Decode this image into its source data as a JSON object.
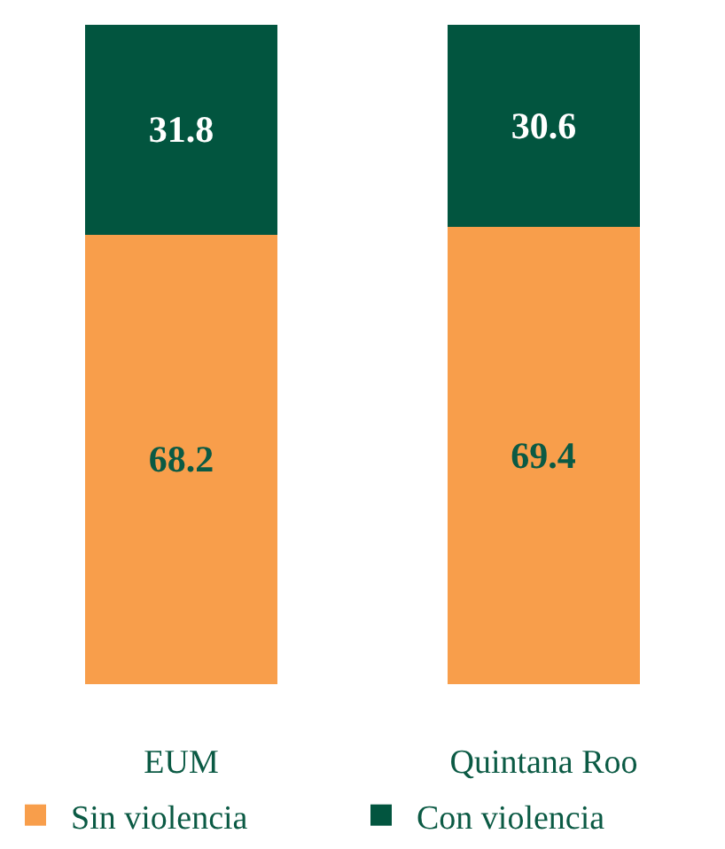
{
  "chart_data": {
    "type": "bar",
    "categories": [
      "EUM",
      "Quintana Roo"
    ],
    "series": [
      {
        "name": "Sin violencia",
        "color": "#f89e4b",
        "values": [
          68.2,
          69.4
        ]
      },
      {
        "name": "Con violencia",
        "color": "#02553f",
        "values": [
          31.8,
          30.6
        ]
      }
    ],
    "stacked": true,
    "data_labels": true,
    "legend": "bottom"
  }
}
